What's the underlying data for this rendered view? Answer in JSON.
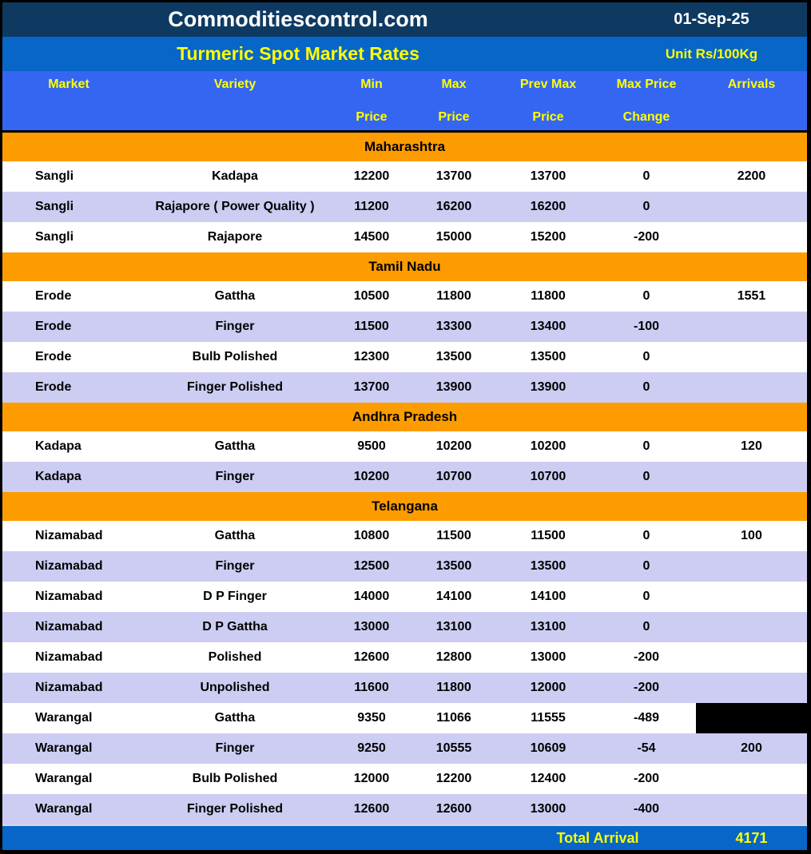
{
  "header": {
    "brand": "Commoditiescontrol.com",
    "date": "01-Sep-25"
  },
  "subheader": {
    "title": "Turmeric Spot Market Rates",
    "unit": "Unit Rs/100Kg"
  },
  "columns": [
    {
      "line1": "Market",
      "line2": ""
    },
    {
      "line1": "Variety",
      "line2": ""
    },
    {
      "line1": "Min",
      "line2": "Price"
    },
    {
      "line1": "Max",
      "line2": "Price"
    },
    {
      "line1": "Prev Max",
      "line2": "Price"
    },
    {
      "line1": "Max Price",
      "line2": "Change"
    },
    {
      "line1": "Arrivals",
      "line2": ""
    }
  ],
  "sections": [
    {
      "name": "Maharashtra",
      "rows": [
        {
          "market": "Sangli",
          "variety": "Kadapa",
          "min": "12200",
          "max": "13700",
          "prev_max": "13700",
          "change": "0",
          "arrivals": "2200"
        },
        {
          "market": "Sangli",
          "variety": "Rajapore ( Power Quality )",
          "min": "11200",
          "max": "16200",
          "prev_max": "16200",
          "change": "0",
          "arrivals": ""
        },
        {
          "market": "Sangli",
          "variety": "Rajapore",
          "min": "14500",
          "max": "15000",
          "prev_max": "15200",
          "change": "-200",
          "arrivals": ""
        }
      ]
    },
    {
      "name": "Tamil Nadu",
      "rows": [
        {
          "market": "Erode",
          "variety": "Gattha",
          "min": "10500",
          "max": "11800",
          "prev_max": "11800",
          "change": "0",
          "arrivals": "1551"
        },
        {
          "market": "Erode",
          "variety": "Finger",
          "min": "11500",
          "max": "13300",
          "prev_max": "13400",
          "change": "-100",
          "arrivals": ""
        },
        {
          "market": "Erode",
          "variety": "Bulb Polished",
          "min": "12300",
          "max": "13500",
          "prev_max": "13500",
          "change": "0",
          "arrivals": ""
        },
        {
          "market": "Erode",
          "variety": "Finger Polished",
          "min": "13700",
          "max": "13900",
          "prev_max": "13900",
          "change": "0",
          "arrivals": ""
        }
      ]
    },
    {
      "name": "Andhra Pradesh",
      "rows": [
        {
          "market": "Kadapa",
          "variety": "Gattha",
          "min": "9500",
          "max": "10200",
          "prev_max": "10200",
          "change": "0",
          "arrivals": "120"
        },
        {
          "market": "Kadapa",
          "variety": "Finger",
          "min": "10200",
          "max": "10700",
          "prev_max": "10700",
          "change": "0",
          "arrivals": ""
        }
      ]
    },
    {
      "name": "Telangana",
      "rows": [
        {
          "market": "Nizamabad",
          "variety": "Gattha",
          "min": "10800",
          "max": "11500",
          "prev_max": "11500",
          "change": "0",
          "arrivals": "100"
        },
        {
          "market": "Nizamabad",
          "variety": "Finger",
          "min": "12500",
          "max": "13500",
          "prev_max": "13500",
          "change": "0",
          "arrivals": ""
        },
        {
          "market": "Nizamabad",
          "variety": "D P Finger",
          "min": "14000",
          "max": "14100",
          "prev_max": "14100",
          "change": "0",
          "arrivals": ""
        },
        {
          "market": "Nizamabad",
          "variety": "D P Gattha",
          "min": "13000",
          "max": "13100",
          "prev_max": "13100",
          "change": "0",
          "arrivals": ""
        },
        {
          "market": "Nizamabad",
          "variety": "Polished",
          "min": "12600",
          "max": "12800",
          "prev_max": "13000",
          "change": "-200",
          "arrivals": ""
        },
        {
          "market": "Nizamabad",
          "variety": "Unpolished",
          "min": "11600",
          "max": "11800",
          "prev_max": "12000",
          "change": "-200",
          "arrivals": ""
        },
        {
          "market": "Warangal",
          "variety": "Gattha",
          "min": "9350",
          "max": "11066",
          "prev_max": "11555",
          "change": "-489",
          "arrivals": "",
          "arrivals_blackout": true
        },
        {
          "market": "Warangal",
          "variety": "Finger",
          "min": "9250",
          "max": "10555",
          "prev_max": "10609",
          "change": "-54",
          "arrivals": "200"
        },
        {
          "market": "Warangal",
          "variety": "Bulb Polished",
          "min": "12000",
          "max": "12200",
          "prev_max": "12400",
          "change": "-200",
          "arrivals": ""
        },
        {
          "market": "Warangal",
          "variety": "Finger Polished",
          "min": "12600",
          "max": "12600",
          "prev_max": "13000",
          "change": "-400",
          "arrivals": ""
        }
      ]
    }
  ],
  "footer": {
    "label": "Total Arrival",
    "total": "4171"
  },
  "colors": {
    "navy": "#0e3a62",
    "blue": "#0766c8",
    "headblue": "#3566f2",
    "orange": "#fc9c00",
    "lavender": "#cdcdf3",
    "yellow": "#ffff00",
    "black": "#000000",
    "white": "#ffffff"
  }
}
